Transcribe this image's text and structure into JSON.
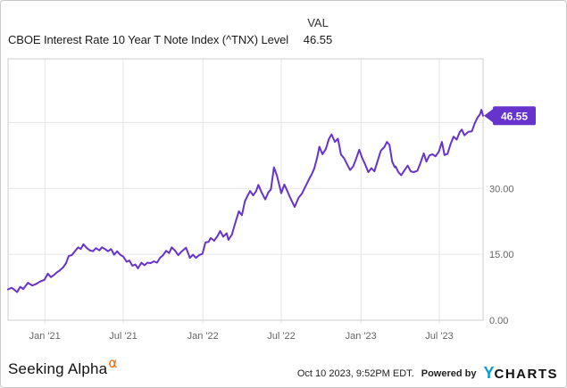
{
  "header": {
    "series_title": "CBOE Interest Rate 10 Year T Note Index (^TNX) Level",
    "val_label": "VAL",
    "val_value": "46.55"
  },
  "footer": {
    "brand": "Seeking Alpha",
    "brand_alpha": "α",
    "timestamp": "Oct 10 2023, 9:52PM EDT.",
    "powered_by": "Powered by",
    "ycharts_y": "Y",
    "ycharts_rest": "CHARTS"
  },
  "chart_data": {
    "type": "line",
    "title": "CBOE Interest Rate 10 Year T Note Index (^TNX) Level",
    "legend_position": "none",
    "grid": true,
    "line_color": "#6633cc",
    "colors": {
      "grid": "#e6e6e6",
      "border": "#cccccc",
      "axis_text": "#666666",
      "badge_text": "#ffffff"
    },
    "plot": {
      "l": 8,
      "t": 65,
      "r": 540,
      "b": 358
    },
    "x_domain": [
      "2020-10-08",
      "2023-10-10"
    ],
    "y_domain": [
      0,
      59.5
    ],
    "xlabel": "",
    "ylabel": "",
    "x_ticks": [
      {
        "date": "2021-01-01",
        "label": "Jan '21"
      },
      {
        "date": "2021-07-01",
        "label": "Jul '21"
      },
      {
        "date": "2022-01-01",
        "label": "Jan '22"
      },
      {
        "date": "2022-07-01",
        "label": "Jul '22"
      },
      {
        "date": "2023-01-01",
        "label": "Jan '23"
      },
      {
        "date": "2023-07-01",
        "label": "Jul '23"
      }
    ],
    "y_ticks": [
      {
        "v": 0,
        "label": "0.00"
      },
      {
        "v": 15,
        "label": "15.00"
      },
      {
        "v": 30,
        "label": "30.00"
      },
      {
        "v": 45,
        "label": ""
      }
    ],
    "end_label": {
      "text": "46.55",
      "value": 46.55
    },
    "points": [
      [
        "2020-10-08",
        7.0
      ],
      [
        "2020-10-16",
        7.4
      ],
      [
        "2020-10-23",
        6.9
      ],
      [
        "2020-10-29",
        6.4
      ],
      [
        "2020-11-05",
        7.6
      ],
      [
        "2020-11-12",
        7.1
      ],
      [
        "2020-11-23",
        8.5
      ],
      [
        "2020-12-03",
        7.9
      ],
      [
        "2020-12-11",
        8.2
      ],
      [
        "2020-12-21",
        8.8
      ],
      [
        "2020-12-31",
        9.2
      ],
      [
        "2021-01-08",
        10.6
      ],
      [
        "2021-01-15",
        9.8
      ],
      [
        "2021-01-22",
        10.3
      ],
      [
        "2021-01-29",
        10.9
      ],
      [
        "2021-02-05",
        11.4
      ],
      [
        "2021-02-12",
        12.0
      ],
      [
        "2021-02-19",
        13.0
      ],
      [
        "2021-02-25",
        14.6
      ],
      [
        "2021-03-04",
        14.8
      ],
      [
        "2021-03-12",
        15.8
      ],
      [
        "2021-03-19",
        16.6
      ],
      [
        "2021-03-25",
        16.2
      ],
      [
        "2021-03-31",
        17.3
      ],
      [
        "2021-04-08",
        16.4
      ],
      [
        "2021-04-15",
        15.9
      ],
      [
        "2021-04-22",
        15.7
      ],
      [
        "2021-04-29",
        16.4
      ],
      [
        "2021-05-07",
        15.9
      ],
      [
        "2021-05-13",
        16.6
      ],
      [
        "2021-05-20",
        16.2
      ],
      [
        "2021-05-27",
        15.7
      ],
      [
        "2021-06-03",
        16.2
      ],
      [
        "2021-06-10",
        14.9
      ],
      [
        "2021-06-17",
        15.7
      ],
      [
        "2021-06-24",
        14.9
      ],
      [
        "2021-07-01",
        14.5
      ],
      [
        "2021-07-09",
        13.3
      ],
      [
        "2021-07-15",
        13.6
      ],
      [
        "2021-07-22",
        12.4
      ],
      [
        "2021-07-29",
        12.7
      ],
      [
        "2021-08-04",
        11.8
      ],
      [
        "2021-08-12",
        13.1
      ],
      [
        "2021-08-19",
        12.5
      ],
      [
        "2021-08-26",
        13.1
      ],
      [
        "2021-09-02",
        13.0
      ],
      [
        "2021-09-10",
        13.4
      ],
      [
        "2021-09-17",
        13.1
      ],
      [
        "2021-09-24",
        14.2
      ],
      [
        "2021-10-01",
        14.8
      ],
      [
        "2021-10-08",
        15.8
      ],
      [
        "2021-10-15",
        15.3
      ],
      [
        "2021-10-21",
        16.6
      ],
      [
        "2021-10-29",
        15.8
      ],
      [
        "2021-11-05",
        14.8
      ],
      [
        "2021-11-12",
        15.6
      ],
      [
        "2021-11-23",
        16.5
      ],
      [
        "2021-12-02",
        14.2
      ],
      [
        "2021-12-09",
        14.9
      ],
      [
        "2021-12-16",
        14.2
      ],
      [
        "2021-12-23",
        14.8
      ],
      [
        "2021-12-31",
        15.1
      ],
      [
        "2022-01-07",
        17.7
      ],
      [
        "2022-01-14",
        17.8
      ],
      [
        "2022-01-19",
        18.7
      ],
      [
        "2022-01-27",
        18.1
      ],
      [
        "2022-02-04",
        19.2
      ],
      [
        "2022-02-10",
        20.3
      ],
      [
        "2022-02-17",
        19.0
      ],
      [
        "2022-02-25",
        19.8
      ],
      [
        "2022-03-01",
        18.3
      ],
      [
        "2022-03-09",
        19.5
      ],
      [
        "2022-03-16",
        21.9
      ],
      [
        "2022-03-25",
        24.8
      ],
      [
        "2022-04-01",
        23.9
      ],
      [
        "2022-04-08",
        27.1
      ],
      [
        "2022-04-14",
        28.3
      ],
      [
        "2022-04-20",
        29.4
      ],
      [
        "2022-04-27",
        28.4
      ],
      [
        "2022-05-04",
        29.4
      ],
      [
        "2022-05-09",
        30.8
      ],
      [
        "2022-05-17",
        29.0
      ],
      [
        "2022-05-25",
        27.5
      ],
      [
        "2022-06-01",
        29.1
      ],
      [
        "2022-06-07",
        29.8
      ],
      [
        "2022-06-14",
        34.8
      ],
      [
        "2022-06-21",
        32.9
      ],
      [
        "2022-07-01",
        28.9
      ],
      [
        "2022-07-08",
        30.9
      ],
      [
        "2022-07-14",
        29.6
      ],
      [
        "2022-07-22",
        27.8
      ],
      [
        "2022-08-01",
        25.8
      ],
      [
        "2022-08-10",
        27.9
      ],
      [
        "2022-08-18",
        28.9
      ],
      [
        "2022-08-25",
        30.3
      ],
      [
        "2022-09-02",
        31.9
      ],
      [
        "2022-09-09",
        33.2
      ],
      [
        "2022-09-15",
        34.5
      ],
      [
        "2022-09-22",
        37.1
      ],
      [
        "2022-09-27",
        39.5
      ],
      [
        "2022-10-04",
        37.8
      ],
      [
        "2022-10-12",
        39.0
      ],
      [
        "2022-10-19",
        41.3
      ],
      [
        "2022-10-25",
        42.3
      ],
      [
        "2022-11-02",
        40.6
      ],
      [
        "2022-11-09",
        41.3
      ],
      [
        "2022-11-16",
        37.7
      ],
      [
        "2022-11-23",
        36.9
      ],
      [
        "2022-12-01",
        35.3
      ],
      [
        "2022-12-07",
        34.2
      ],
      [
        "2022-12-14",
        35.0
      ],
      [
        "2022-12-21",
        36.8
      ],
      [
        "2022-12-28",
        38.8
      ],
      [
        "2023-01-04",
        36.9
      ],
      [
        "2023-01-11",
        35.4
      ],
      [
        "2023-01-18",
        33.7
      ],
      [
        "2023-01-25",
        34.6
      ],
      [
        "2023-02-01",
        33.9
      ],
      [
        "2023-02-08",
        36.1
      ],
      [
        "2023-02-16",
        38.6
      ],
      [
        "2023-02-24",
        39.4
      ],
      [
        "2023-03-02",
        40.6
      ],
      [
        "2023-03-08",
        39.9
      ],
      [
        "2023-03-14",
        36.1
      ],
      [
        "2023-03-20",
        34.8
      ],
      [
        "2023-03-22",
        35.0
      ],
      [
        "2023-03-28",
        33.8
      ],
      [
        "2023-04-04",
        33.0
      ],
      [
        "2023-04-12",
        34.2
      ],
      [
        "2023-04-19",
        35.2
      ],
      [
        "2023-04-26",
        33.9
      ],
      [
        "2023-05-03",
        33.7
      ],
      [
        "2023-05-11",
        34.0
      ],
      [
        "2023-05-18",
        35.7
      ],
      [
        "2023-05-26",
        38.0
      ],
      [
        "2023-06-01",
        36.1
      ],
      [
        "2023-06-08",
        37.5
      ],
      [
        "2023-06-15",
        37.8
      ],
      [
        "2023-06-22",
        37.3
      ],
      [
        "2023-06-30",
        38.4
      ],
      [
        "2023-07-07",
        40.6
      ],
      [
        "2023-07-13",
        37.6
      ],
      [
        "2023-07-20",
        37.9
      ],
      [
        "2023-07-27",
        40.1
      ],
      [
        "2023-08-03",
        41.8
      ],
      [
        "2023-08-10",
        41.1
      ],
      [
        "2023-08-17",
        42.8
      ],
      [
        "2023-08-22",
        43.4
      ],
      [
        "2023-08-28",
        42.1
      ],
      [
        "2023-09-06",
        42.9
      ],
      [
        "2023-09-14",
        43.0
      ],
      [
        "2023-09-21",
        44.9
      ],
      [
        "2023-09-27",
        46.1
      ],
      [
        "2023-10-03",
        46.9
      ],
      [
        "2023-10-06",
        47.9
      ],
      [
        "2023-10-10",
        46.55
      ]
    ]
  }
}
